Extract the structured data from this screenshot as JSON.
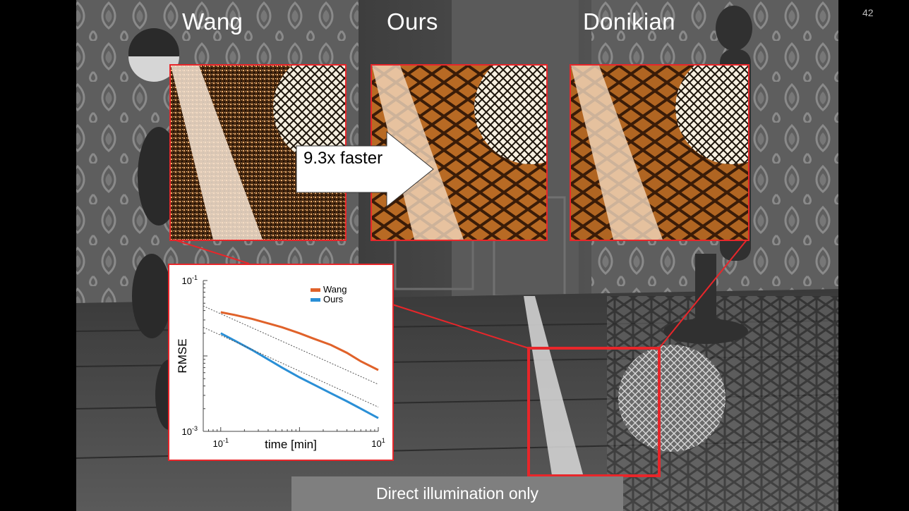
{
  "slide": {
    "number": "42",
    "titles": [
      "Wang",
      "Ours",
      "Donikian"
    ],
    "callout": "9.3x faster",
    "caption": "Direct illumination only"
  },
  "colors": {
    "highlight_box": "#e8262a",
    "wang": "#e0622a",
    "ours": "#2a8fd6",
    "caption_bg": "#7f7f7f"
  },
  "chart_data": {
    "type": "line",
    "xscale": "log",
    "yscale": "log",
    "xlabel": "time [min]",
    "ylabel": "RMSE",
    "xlim": [
      0.06,
      10
    ],
    "ylim": [
      0.001,
      0.1
    ],
    "xtick_labels": [
      "10^-1",
      "10^1"
    ],
    "ytick_labels": [
      "10^-1",
      "10^-3"
    ],
    "legend": "top-right",
    "series": [
      {
        "name": "Wang",
        "color": "#e0622a",
        "x": [
          0.1,
          0.15,
          0.25,
          0.4,
          0.6,
          1.0,
          1.5,
          2.5,
          4.0,
          6.0,
          10.0
        ],
        "y": [
          0.038,
          0.035,
          0.031,
          0.027,
          0.024,
          0.02,
          0.017,
          0.014,
          0.011,
          0.0085,
          0.0065
        ]
      },
      {
        "name": "Ours",
        "color": "#2a8fd6",
        "x": [
          0.1,
          0.15,
          0.25,
          0.4,
          0.6,
          1.0,
          1.5,
          2.5,
          4.0,
          6.0,
          10.0
        ],
        "y": [
          0.02,
          0.016,
          0.012,
          0.009,
          0.007,
          0.0052,
          0.0042,
          0.0032,
          0.0025,
          0.002,
          0.0015
        ]
      },
      {
        "name": "",
        "style": "dotted",
        "color": "#555555",
        "x": [
          0.06,
          10.0
        ],
        "y": [
          0.046,
          0.0042
        ]
      },
      {
        "name": "",
        "style": "dotted",
        "color": "#555555",
        "x": [
          0.06,
          10.0
        ],
        "y": [
          0.024,
          0.0021
        ]
      }
    ]
  }
}
